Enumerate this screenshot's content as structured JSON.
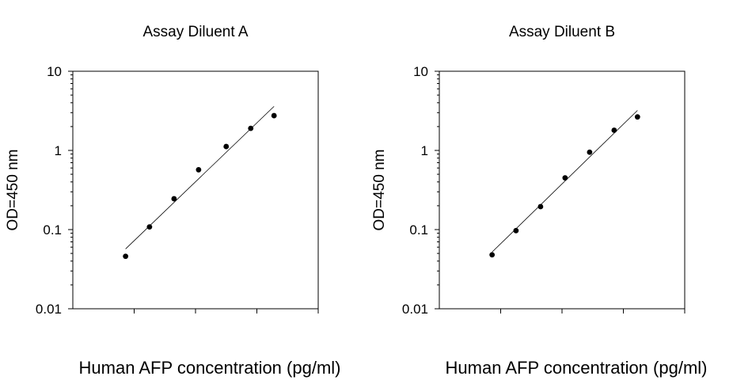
{
  "chart_data": [
    {
      "type": "scatter",
      "title": "Assay Diluent A",
      "xlabel": "Human AFP concentration (pg/ml)",
      "ylabel": "OD=450 nm",
      "yscale": "log",
      "ylim": [
        0.01,
        10
      ],
      "yticks": [
        "0.01",
        "0.1",
        "1",
        "10"
      ],
      "xlim": [
        0,
        4
      ],
      "grid": false,
      "series": [
        {
          "x": [
            0.86,
            1.25,
            1.65,
            2.05,
            2.5,
            2.9,
            3.28
          ],
          "values": [
            0.046,
            0.108,
            0.245,
            0.57,
            1.12,
            1.9,
            2.75
          ]
        }
      ],
      "fit": {
        "x": [
          0.86,
          3.28
        ],
        "values": [
          0.057,
          3.6
        ]
      }
    },
    {
      "type": "scatter",
      "title": "Assay Diluent B",
      "xlabel": "Human AFP concentration (pg/ml)",
      "ylabel": "OD=450 nm",
      "yscale": "log",
      "ylim": [
        0.01,
        10
      ],
      "yticks": [
        "0.01",
        "0.1",
        "1",
        "10"
      ],
      "xlim": [
        0,
        4
      ],
      "grid": false,
      "series": [
        {
          "x": [
            0.86,
            1.25,
            1.65,
            2.05,
            2.45,
            2.85,
            3.23
          ],
          "values": [
            0.048,
            0.097,
            0.195,
            0.45,
            0.95,
            1.8,
            2.65
          ]
        }
      ],
      "fit": {
        "x": [
          0.86,
          3.23
        ],
        "values": [
          0.052,
          3.2
        ]
      }
    }
  ]
}
